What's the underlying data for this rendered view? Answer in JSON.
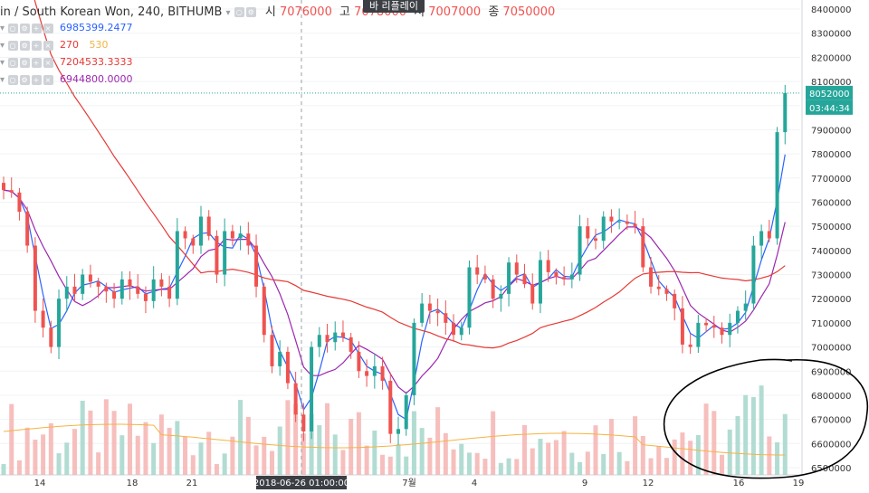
{
  "header": {
    "symbol": "in / South Korean Won, 240, BITHUMB",
    "open_label": "시",
    "open_value": "7076000",
    "high_label": "고",
    "high_value": "7078000",
    "low_label": "저",
    "low_value": "7007000",
    "close_label": "종",
    "close_value": "7050000",
    "tooltip": "바 리플레이"
  },
  "indicators": [
    {
      "values": [
        "6985399.2477"
      ],
      "colors": [
        "#2962ff"
      ]
    },
    {
      "values": [
        "270",
        "530"
      ],
      "colors": [
        "#e53935",
        "#f5b342"
      ]
    },
    {
      "values": [
        "7204533.3333"
      ],
      "colors": [
        "#e53935"
      ]
    },
    {
      "values": [
        "6944800.0000"
      ],
      "colors": [
        "#9c27b0"
      ]
    }
  ],
  "price_axis": {
    "ticks": [
      "8400000",
      "8300000",
      "8200000",
      "8100000",
      "8000000",
      "7900000",
      "7800000",
      "7700000",
      "7600000",
      "7500000",
      "7400000",
      "7300000",
      "7200000",
      "7100000",
      "7000000",
      "6900000",
      "6800000",
      "6700000",
      "6600000",
      "6500000"
    ],
    "last_price": "8052000",
    "countdown": "03:44:34"
  },
  "time_axis": {
    "ticks": [
      "14",
      "18",
      "21",
      "7월",
      "4",
      "9",
      "12",
      "16",
      "19"
    ],
    "crosshair_label": "2018-06-26 01:00:00"
  },
  "colors": {
    "up": "#26a69a",
    "down": "#ef5350",
    "ma_fast": "#2962ff",
    "ma_mid": "#9c27b0",
    "ma_slow": "#e53935",
    "vol_ma": "#f5b342",
    "marker": "#000000"
  },
  "chart_data": {
    "type": "candlestick",
    "timeframe_minutes": 240,
    "ylim": [
      6470000,
      8430000
    ],
    "candle_closes": [
      7650000,
      7640000,
      7560000,
      7420000,
      7150000,
      7080000,
      7000000,
      7200000,
      7250000,
      7220000,
      7300000,
      7270000,
      7250000,
      7230000,
      7200000,
      7280000,
      7250000,
      7220000,
      7190000,
      7280000,
      7250000,
      7200000,
      7480000,
      7450000,
      7420000,
      7540000,
      7460000,
      7300000,
      7480000,
      7450000,
      7470000,
      7420000,
      7250000,
      7050000,
      6920000,
      6980000,
      6850000,
      6720000,
      6650000,
      7000000,
      7050000,
      7020000,
      7060000,
      7040000,
      6980000,
      6900000,
      6880000,
      6920000,
      6860000,
      6640000,
      6660000,
      6800000,
      7100000,
      7180000,
      7150000,
      7140000,
      7100000,
      7050000,
      7080000,
      7330000,
      7300000,
      7280000,
      7200000,
      7220000,
      7350000,
      7300000,
      7260000,
      7180000,
      7360000,
      7310000,
      7290000,
      7280000,
      7300000,
      7500000,
      7450000,
      7440000,
      7540000,
      7520000,
      7520000,
      7510000,
      7500000,
      7330000,
      7250000,
      7240000,
      7220000,
      7160000,
      7010000,
      7000000,
      7100000,
      7090000,
      7080000,
      7050000,
      7100000,
      7150000,
      7180000,
      7420000,
      7480000,
      7450000,
      7890000,
      8052000
    ],
    "volume_ma_label": "530"
  }
}
